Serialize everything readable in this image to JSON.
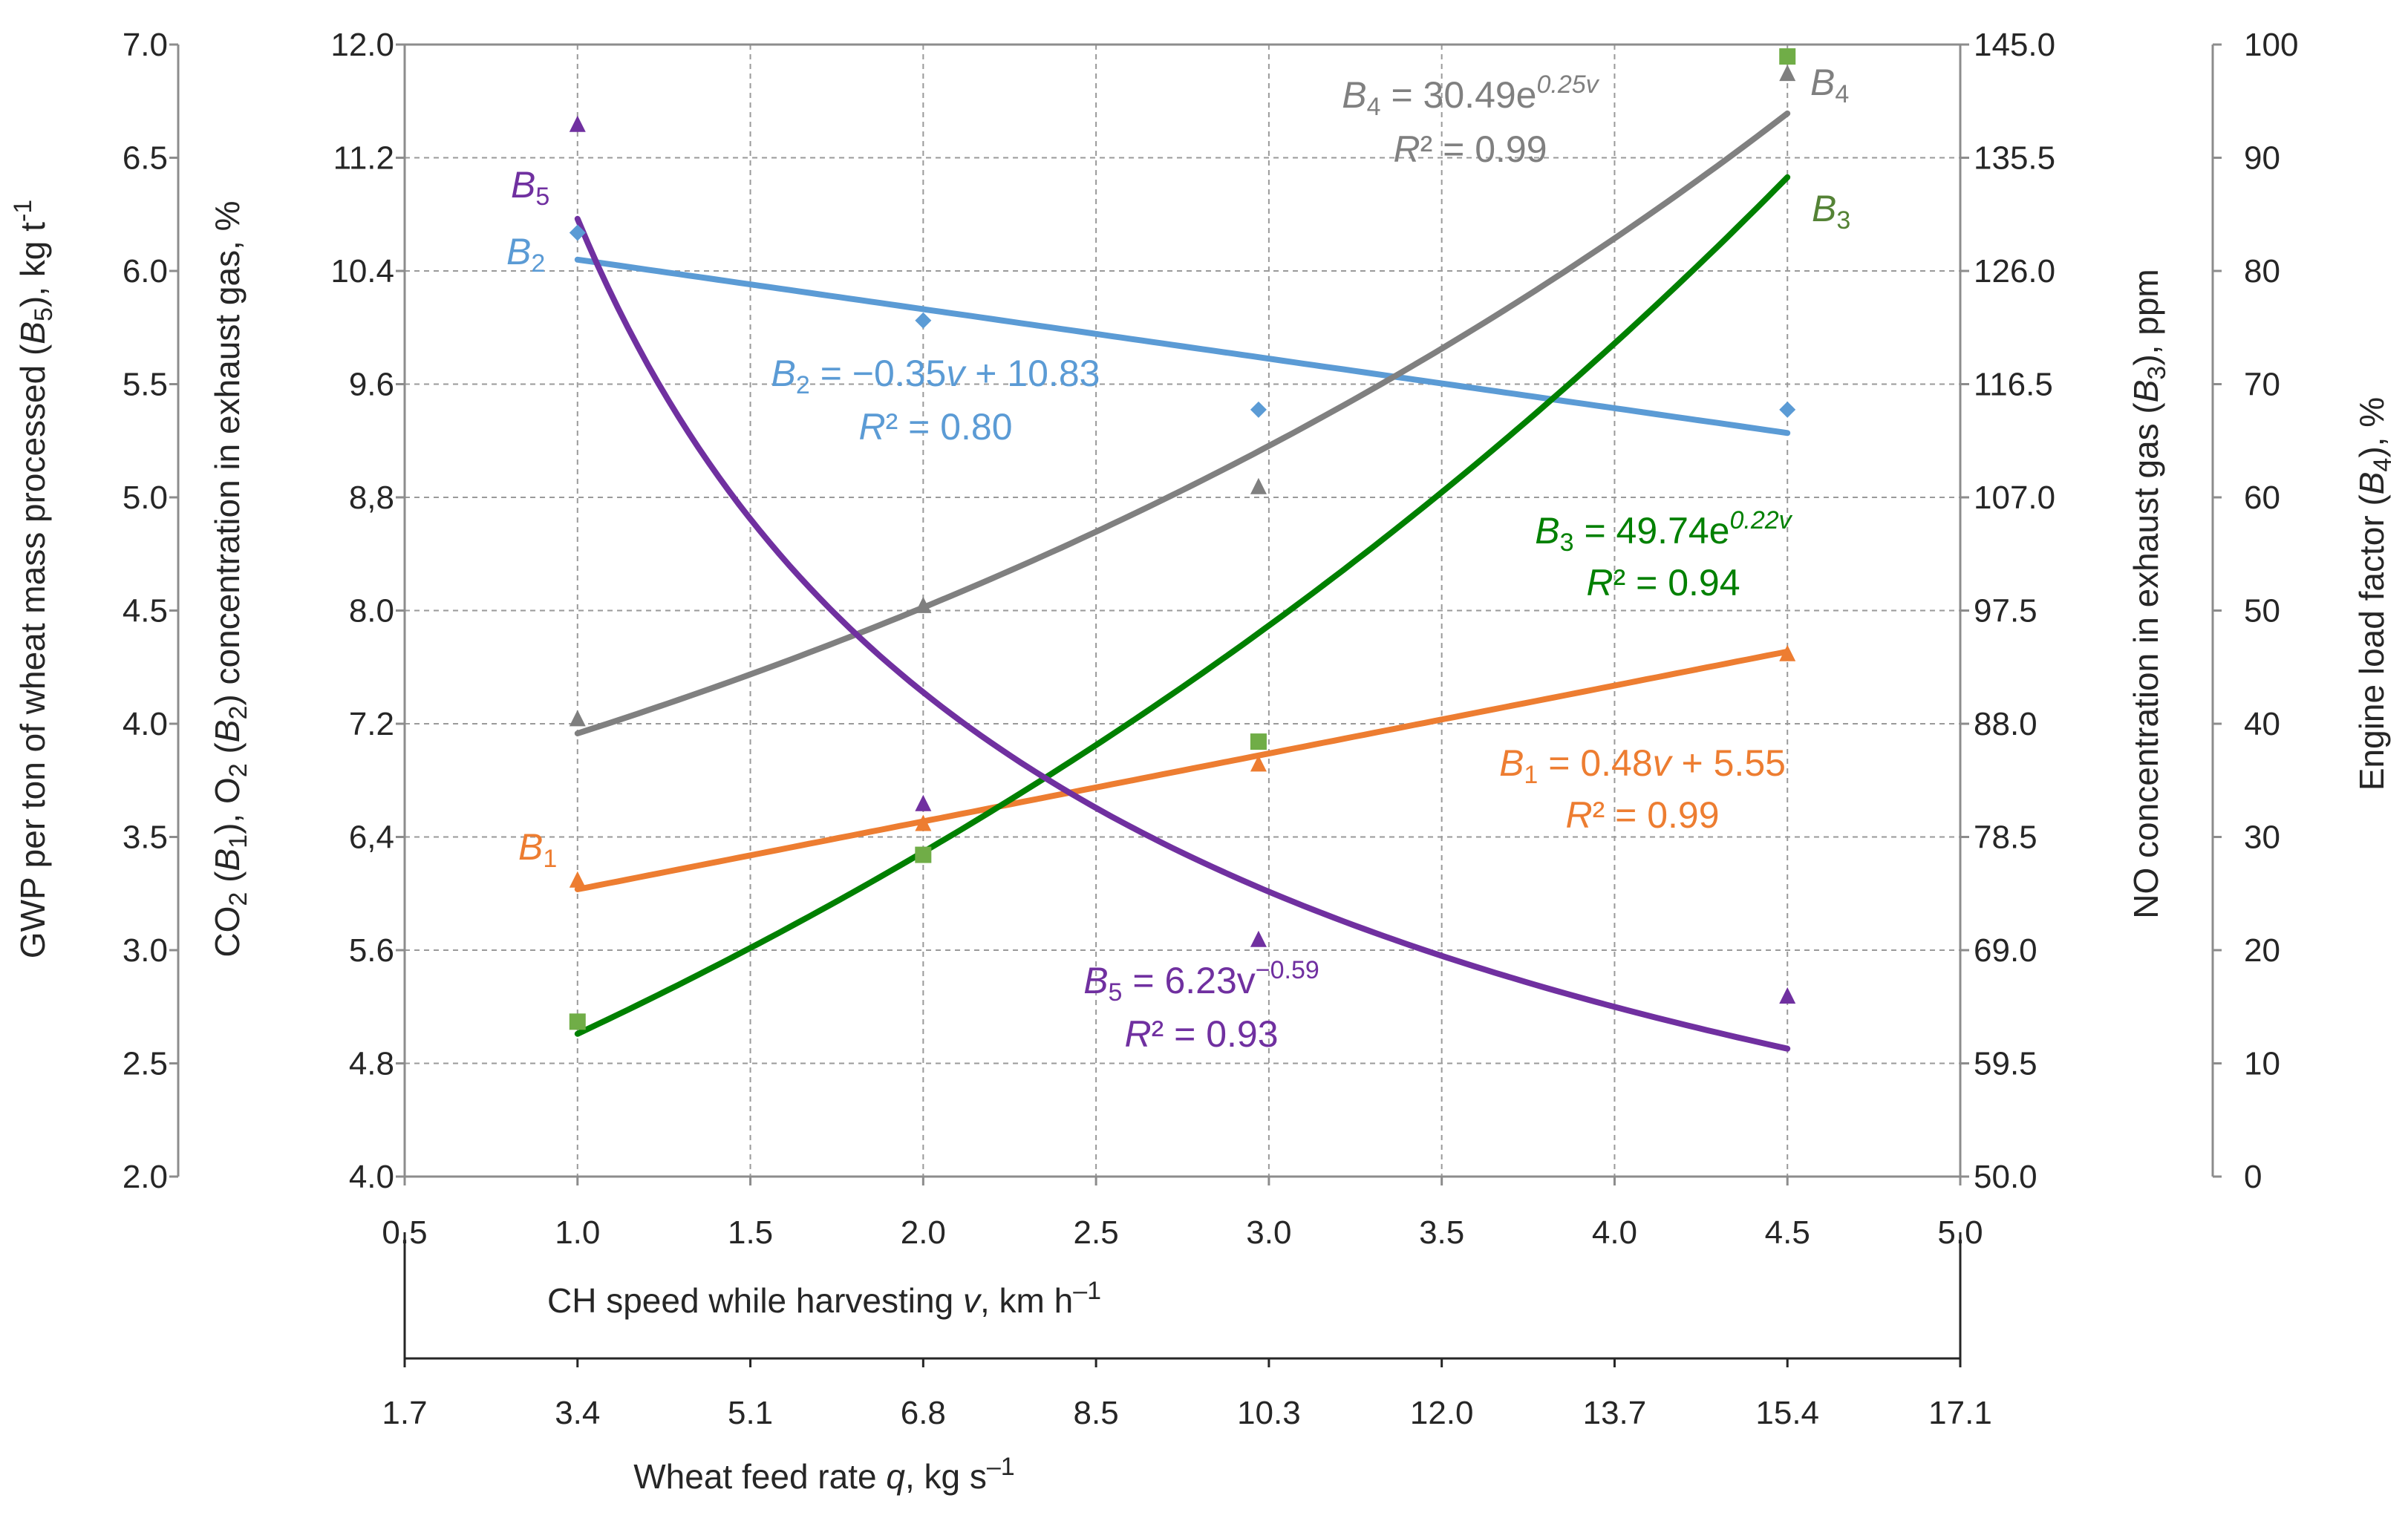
{
  "chart_data": {
    "type": "scatter",
    "x_axis": {
      "label_main": "CH speed while harvesting ",
      "label_var": "v",
      "label_unit": ", km h",
      "label_exp": "–1",
      "range": [
        0.5,
        5.0
      ],
      "ticks": [
        "0.5",
        "1.0",
        "1.5",
        "2.0",
        "2.5",
        "3.0",
        "3.5",
        "4.0",
        "4.5",
        "5.0"
      ]
    },
    "x2_axis": {
      "label_main": "Wheat feed rate ",
      "label_var": "q",
      "label_unit": ", kg s",
      "label_exp": "–1",
      "ticks": [
        "1.7",
        "3.4",
        "5.1",
        "6.8",
        "8.5",
        "10.3",
        "12.0",
        "13.7",
        "15.4",
        "17.1"
      ]
    },
    "y_gwp": {
      "label_a": "GWP per ton of wheat mass processed (",
      "label_var": "B",
      "label_sub": "5",
      "label_b": "), kg t",
      "label_exp": "-1",
      "range": [
        2.0,
        7.0
      ],
      "ticks": [
        "2.0",
        "2.5",
        "3.0",
        "3.5",
        "4.0",
        "4.5",
        "5.0",
        "5.5",
        "6.0",
        "6.5",
        "7.0"
      ]
    },
    "y_gas": {
      "l1": "CO",
      "l1s": "2",
      "l2": " (",
      "l3": "B",
      "l3s": "1",
      "l4": "), O",
      "l4s": "2",
      "l5": " (",
      "l6": "B",
      "l6s": "2",
      "l7": ") concentration in exhaust gas, %",
      "range": [
        4.0,
        12.0
      ],
      "ticks": [
        "4.0",
        "4.8",
        "5.6",
        "6,4",
        "7.2",
        "8.0",
        "8,8",
        "9.6",
        "10.4",
        "11.2",
        "12.0"
      ]
    },
    "y_no": {
      "label_a": "NO concentration in exhaust gas (",
      "label_var": "B",
      "label_sub": "3",
      "label_b": "), ppm",
      "range": [
        50.0,
        145.0
      ],
      "ticks": [
        "50.0",
        "59.5",
        "69.0",
        "78.5",
        "88.0",
        "97.5",
        "107.0",
        "116.5",
        "126.0",
        "135.5",
        "145.0"
      ]
    },
    "y_load": {
      "label_a": "Engine load factor (",
      "label_var": "B",
      "label_sub": "4",
      "label_b": "), %",
      "range": [
        0,
        100
      ],
      "ticks": [
        "0",
        "10",
        "20",
        "30",
        "40",
        "50",
        "60",
        "70",
        "80",
        "90",
        "100"
      ]
    },
    "grid": true,
    "series": [
      {
        "name": "B1",
        "axis": "gas",
        "color": "#ed7d31",
        "marker": "triangle",
        "points": [
          [
            1.0,
            6.1
          ],
          [
            2.0,
            6.5
          ],
          [
            2.97,
            6.92
          ],
          [
            4.5,
            7.7
          ]
        ],
        "fit": {
          "kind": "linear",
          "a": 0.48,
          "b": 5.55
        },
        "label_var": "B",
        "label_sub": "1",
        "eq_a": "B",
        "eq_sub": "1",
        "eq_b": " = 0.48",
        "eq_v": "v",
        "eq_c": " + 5.55",
        "r2_a": "R",
        "r2_b": "² = 0.99"
      },
      {
        "name": "B2",
        "axis": "gas",
        "color": "#5b9bd5",
        "marker": "diamond",
        "points": [
          [
            1.0,
            10.67
          ],
          [
            2.0,
            10.05
          ],
          [
            2.97,
            9.42
          ],
          [
            4.5,
            9.42
          ]
        ],
        "fit": {
          "kind": "linear",
          "a": -0.35,
          "b": 10.83
        },
        "label_var": "B",
        "label_sub": "2",
        "eq_a": "B",
        "eq_sub": "2",
        "eq_b": " = −0.35",
        "eq_v": "v",
        "eq_c": " + 10.83",
        "r2_a": "R",
        "r2_b": "² = 0.80"
      },
      {
        "name": "B3",
        "axis": "no",
        "color": "#70ad47",
        "fitColor": "#008000",
        "marker": "square",
        "points": [
          [
            1.0,
            63.0
          ],
          [
            2.0,
            77.0
          ],
          [
            2.97,
            86.5
          ],
          [
            4.5,
            144.0
          ]
        ],
        "fit": {
          "kind": "exp",
          "a": 49.74,
          "b": 0.22
        },
        "label_var": "B",
        "label_sub": "3",
        "eq_a": "B",
        "eq_sub": "3",
        "eq_b": " = 49.74e",
        "eq_exp": "0.22v",
        "r2_a": "R",
        "r2_b": "² = 0.94"
      },
      {
        "name": "B4",
        "axis": "load",
        "color": "#7f7f7f",
        "fitColor": "#808080",
        "marker": "triangle",
        "points": [
          [
            1.0,
            40.5
          ],
          [
            2.0,
            50.5
          ],
          [
            2.97,
            61.0
          ],
          [
            4.5,
            97.5
          ]
        ],
        "fit": {
          "kind": "exp",
          "a": 30.49,
          "b": 0.25
        },
        "label_var": "B",
        "label_sub": "4",
        "eq_a": "B",
        "eq_sub": "4",
        "eq_b": " = 30.49e",
        "eq_exp": "0.25v",
        "r2_a": "R",
        "r2_b": "² = 0.99"
      },
      {
        "name": "B5",
        "axis": "gwp",
        "color": "#7030a0",
        "marker": "triangle",
        "points": [
          [
            1.0,
            6.65
          ],
          [
            2.0,
            3.65
          ],
          [
            2.97,
            3.05
          ],
          [
            4.5,
            2.8
          ]
        ],
        "fit": {
          "kind": "power",
          "a": 6.23,
          "b": -0.59
        },
        "label_var": "B",
        "label_sub": "5",
        "eq_a": "B",
        "eq_sub": "5",
        "eq_b": " = 6.23v",
        "eq_exp": "−0.59",
        "r2_a": "R",
        "r2_b": "² = 0.93"
      }
    ]
  }
}
